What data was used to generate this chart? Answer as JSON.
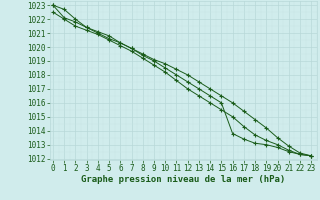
{
  "x": [
    0,
    1,
    2,
    3,
    4,
    5,
    6,
    7,
    8,
    9,
    10,
    11,
    12,
    13,
    14,
    15,
    16,
    17,
    18,
    19,
    20,
    21,
    22,
    23
  ],
  "line1": [
    1023.0,
    1022.1,
    1021.8,
    1021.4,
    1021.0,
    1020.6,
    1020.3,
    1019.9,
    1019.5,
    1019.1,
    1018.8,
    1018.4,
    1018.0,
    1017.5,
    1017.0,
    1016.5,
    1016.0,
    1015.4,
    1014.8,
    1014.2,
    1013.5,
    1012.9,
    1012.4,
    1012.2
  ],
  "line2": [
    1022.5,
    1022.0,
    1021.5,
    1021.2,
    1020.9,
    1020.5,
    1020.1,
    1019.7,
    1019.2,
    1018.7,
    1018.2,
    1017.6,
    1017.0,
    1016.5,
    1016.0,
    1015.5,
    1015.0,
    1014.3,
    1013.7,
    1013.3,
    1013.0,
    1012.6,
    1012.3,
    1012.2
  ],
  "line3": [
    1023.0,
    1022.7,
    1022.0,
    1021.4,
    1021.1,
    1020.8,
    1020.3,
    1019.9,
    1019.4,
    1019.0,
    1018.5,
    1018.0,
    1017.5,
    1017.0,
    1016.5,
    1016.0,
    1013.8,
    1013.4,
    1013.1,
    1013.0,
    1012.8,
    1012.5,
    1012.3,
    1012.2
  ],
  "bg_color": "#d0ecec",
  "grid_major_color": "#b8d8d8",
  "grid_minor_color": "#c8e4e4",
  "line_color": "#1a5c1a",
  "ylim_min": 1012,
  "ylim_max": 1023,
  "xlabel": "Graphe pression niveau de la mer (hPa)",
  "tick_fontsize": 5.5,
  "label_fontsize": 6.5
}
